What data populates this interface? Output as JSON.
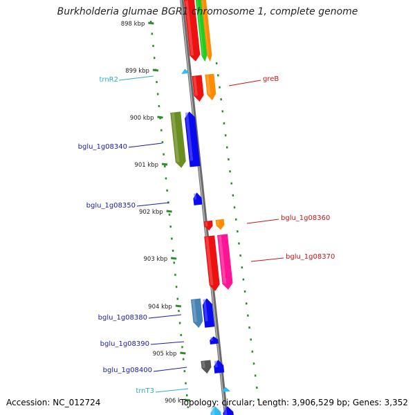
{
  "title": "Burkholderia glumae BGR1 chromosome 1, complete genome",
  "footer": {
    "accession": "Accession: NC_012724",
    "stats": "Topology: circular; Length: 3,906,529 bp; Genes: 3,352"
  },
  "ruler": {
    "ticks": [
      "898 kbp",
      "899 kbp",
      "900 kbp",
      "901 kbp",
      "902 kbp",
      "903 kbp",
      "904 kbp",
      "905 kbp",
      "906 k"
    ]
  },
  "colors": {
    "backbone": "#8a8a8a",
    "dots": "#2e8b2e",
    "left_label": "#1a1aa8",
    "right_label": "#cc1111",
    "rna_label": "#33aacc",
    "blue": "#0a0aee",
    "red": "#ee1111",
    "orange": "#ff8c00",
    "green": "#22cc22",
    "olive": "#6b8e23",
    "steelblue": "#4682b4",
    "pink": "#ff1493",
    "gray": "#555555",
    "cyan": "#33bbee"
  },
  "features": [
    {
      "label": "trnR2",
      "side": "left",
      "type": "rna"
    },
    {
      "label": "greB",
      "side": "right",
      "type": "gene"
    },
    {
      "label": "bglu_1g08340",
      "side": "left",
      "type": "gene"
    },
    {
      "label": "bglu_1g08350",
      "side": "left",
      "type": "gene"
    },
    {
      "label": "bglu_1g08360",
      "side": "right",
      "type": "gene"
    },
    {
      "label": "bglu_1g08370",
      "side": "right",
      "type": "gene"
    },
    {
      "label": "bglu_1g08380",
      "side": "left",
      "type": "gene"
    },
    {
      "label": "bglu_1g08390",
      "side": "left",
      "type": "gene"
    },
    {
      "label": "bglu_1g08400",
      "side": "left",
      "type": "gene"
    },
    {
      "label": "trnT3",
      "side": "left",
      "type": "rna"
    }
  ]
}
